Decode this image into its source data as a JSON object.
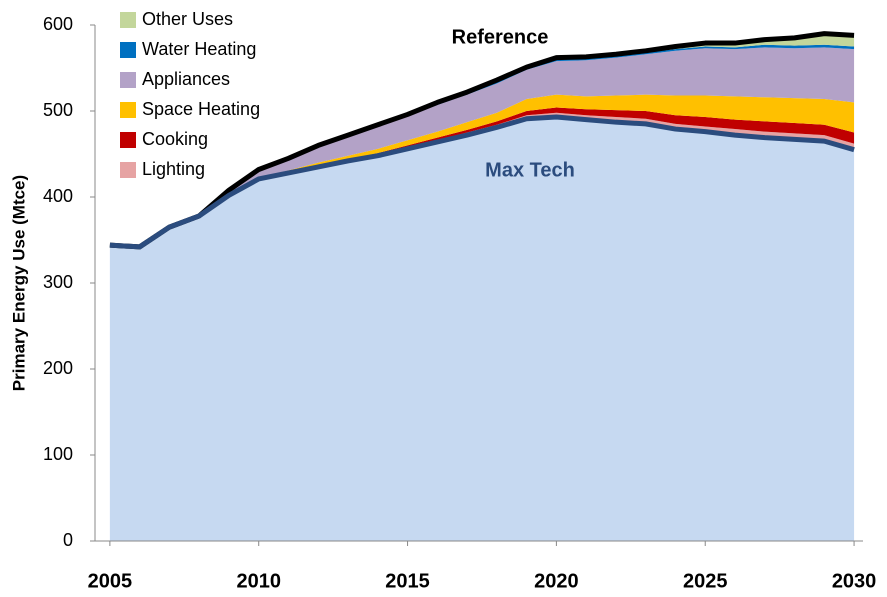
{
  "chart_data": {
    "type": "stacked_area",
    "y_label": "Primary Energy Use (Mtce)",
    "x": [
      2005,
      2006,
      2007,
      2008,
      2009,
      2010,
      2011,
      2012,
      2013,
      2014,
      2015,
      2016,
      2017,
      2018,
      2019,
      2020,
      2021,
      2022,
      2023,
      2024,
      2025,
      2026,
      2027,
      2028,
      2029,
      2030
    ],
    "base": {
      "name": "Max Tech",
      "color": "#c6d9f1",
      "line_color": "#2b4c7e",
      "values": [
        344,
        342,
        365,
        378,
        402,
        421,
        428,
        435,
        442,
        448,
        456,
        464,
        472,
        481,
        491,
        493,
        490,
        487,
        485,
        479,
        476,
        472,
        469,
        467,
        465,
        455
      ]
    },
    "series": [
      {
        "name": "Lighting",
        "color": "#e6a3a3",
        "values": [
          0,
          0,
          0,
          0,
          0,
          0,
          0,
          1,
          1,
          1,
          2,
          2,
          3,
          3,
          4,
          5,
          5,
          6,
          6,
          6,
          6,
          7,
          7,
          7,
          7,
          7
        ]
      },
      {
        "name": "Cooking",
        "color": "#c00000",
        "values": [
          0,
          0,
          0,
          0,
          0,
          0,
          1,
          1,
          1,
          2,
          2,
          3,
          3,
          4,
          5,
          6,
          7,
          8,
          9,
          10,
          11,
          11,
          12,
          12,
          12,
          13
        ]
      },
      {
        "name": "Space Heating",
        "color": "#ffc000",
        "values": [
          0,
          0,
          0,
          0,
          0,
          1,
          2,
          3,
          4,
          5,
          6,
          7,
          9,
          10,
          14,
          15,
          15,
          17,
          19,
          23,
          25,
          27,
          28,
          29,
          30,
          35
        ]
      },
      {
        "name": "Appliances",
        "color": "#b3a2c7",
        "values": [
          0,
          0,
          0,
          0,
          5,
          9,
          13,
          19,
          22,
          26,
          28,
          31,
          32,
          34,
          34,
          39,
          42,
          44,
          47,
          52,
          55,
          55,
          58,
          58,
          60,
          62
        ]
      },
      {
        "name": "Water Heating",
        "color": "#0070c0",
        "values": [
          0,
          0,
          0,
          0,
          1,
          1,
          1,
          1,
          1,
          1,
          1,
          1,
          1,
          2,
          2,
          2,
          2,
          2,
          2,
          2,
          2,
          2,
          3,
          3,
          3,
          3
        ]
      },
      {
        "name": "Other Uses",
        "color": "#c3d69b",
        "values": [
          0,
          0,
          0,
          0,
          0,
          0,
          0,
          0,
          1,
          1,
          1,
          2,
          2,
          2,
          1,
          2,
          2,
          2,
          2,
          3,
          4,
          5,
          6,
          9,
          13,
          13
        ]
      }
    ],
    "reference": {
      "name": "Reference",
      "color": "#000000",
      "values": [
        344,
        342,
        365,
        378,
        408,
        432,
        445,
        460,
        472,
        484,
        496,
        510,
        522,
        536,
        551,
        562,
        563,
        566,
        570,
        575,
        579,
        579,
        583,
        585,
        590,
        588
      ]
    },
    "xlim": [
      2004.5,
      2030.3
    ],
    "xticks": [
      2005,
      2010,
      2015,
      2020,
      2025,
      2030
    ],
    "ylim": [
      0,
      600
    ],
    "yticks": [
      0,
      100,
      200,
      300,
      400,
      500,
      600
    ],
    "grid": false,
    "legend": "upper left"
  }
}
